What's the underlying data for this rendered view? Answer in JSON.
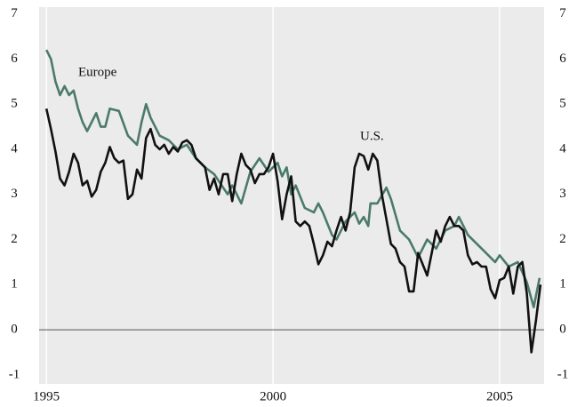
{
  "chart_data": {
    "type": "line",
    "annotations": [
      "Europe",
      "U.S."
    ],
    "series": [
      {
        "name": "U.S.",
        "color": "#111111",
        "x": [
          1995.0,
          1995.1,
          1995.2,
          1995.3,
          1995.4,
          1995.5,
          1995.6,
          1995.7,
          1995.8,
          1995.9,
          1996.0,
          1996.1,
          1996.2,
          1996.3,
          1996.4,
          1996.5,
          1996.6,
          1996.7,
          1996.8,
          1996.9,
          1997.0,
          1997.1,
          1997.2,
          1997.3,
          1997.4,
          1997.5,
          1997.6,
          1997.7,
          1997.8,
          1997.9,
          1998.0,
          1998.1,
          1998.2,
          1998.3,
          1998.4,
          1998.5,
          1998.6,
          1998.7,
          1998.8,
          1998.9,
          1999.0,
          1999.1,
          1999.2,
          1999.3,
          1999.4,
          1999.5,
          1999.6,
          1999.7,
          1999.8,
          1999.9,
          2000.0,
          2000.1,
          2000.2,
          2000.3,
          2000.4,
          2000.5,
          2000.6,
          2000.7,
          2000.8,
          2000.9,
          2001.0,
          2001.1,
          2001.2,
          2001.3,
          2001.4,
          2001.5,
          2001.6,
          2001.7,
          2001.8,
          2001.9,
          2002.0,
          2002.1,
          2002.2,
          2002.3,
          2002.4,
          2002.5,
          2002.6,
          2002.7,
          2002.8,
          2002.9,
          2003.0,
          2003.1,
          2003.2,
          2003.3,
          2003.4,
          2003.5,
          2003.6,
          2003.7,
          2003.8,
          2003.9,
          2004.0,
          2004.1,
          2004.2,
          2004.3,
          2004.4,
          2004.5,
          2004.6,
          2004.7,
          2004.8,
          2004.9,
          2005.0,
          2005.1,
          2005.2,
          2005.3,
          2005.4,
          2005.5,
          2005.6,
          2005.7,
          2005.8,
          2005.9
        ],
        "values": [
          4.9,
          4.45,
          3.95,
          3.35,
          3.2,
          3.5,
          3.9,
          3.7,
          3.2,
          3.3,
          2.95,
          3.1,
          3.5,
          3.7,
          4.05,
          3.8,
          3.7,
          3.75,
          2.9,
          3.0,
          3.55,
          3.35,
          4.25,
          4.45,
          4.1,
          4.0,
          4.1,
          3.9,
          4.05,
          3.95,
          4.15,
          4.2,
          4.1,
          3.8,
          3.7,
          3.6,
          3.1,
          3.35,
          3.0,
          3.45,
          3.45,
          2.85,
          3.45,
          3.9,
          3.65,
          3.55,
          3.25,
          3.45,
          3.45,
          3.6,
          3.9,
          3.3,
          2.45,
          3.0,
          3.4,
          2.4,
          2.3,
          2.4,
          2.3,
          1.9,
          1.45,
          1.65,
          1.95,
          1.85,
          2.2,
          2.5,
          2.2,
          2.6,
          3.6,
          3.9,
          3.85,
          3.55,
          3.9,
          3.75,
          3.0,
          2.45,
          1.9,
          1.8,
          1.5,
          1.4,
          0.85,
          0.85,
          1.7,
          1.45,
          1.2,
          1.7,
          2.2,
          1.95,
          2.3,
          2.5,
          2.3,
          2.3,
          2.2,
          1.65,
          1.45,
          1.5,
          1.4,
          1.4,
          0.9,
          0.7,
          1.1,
          1.15,
          1.4,
          0.8,
          1.4,
          1.5,
          0.8,
          -0.5,
          0.2,
          1.0
        ]
      },
      {
        "name": "Europe",
        "color": "#4b7a6b",
        "x": [
          1995.0,
          1995.1,
          1995.2,
          1995.3,
          1995.4,
          1995.5,
          1995.6,
          1995.7,
          1995.8,
          1995.9,
          1996.0,
          1996.1,
          1996.2,
          1996.3,
          1996.4,
          1996.6,
          1996.8,
          1997.0,
          1997.1,
          1997.2,
          1997.3,
          1997.5,
          1997.7,
          1997.9,
          1998.1,
          1998.3,
          1998.5,
          1998.7,
          1999.0,
          1999.1,
          1999.3,
          1999.5,
          1999.7,
          1999.9,
          2000.1,
          2000.2,
          2000.3,
          2000.4,
          2000.5,
          2000.7,
          2000.9,
          2001.0,
          2001.1,
          2001.3,
          2001.4,
          2001.6,
          2001.8,
          2001.9,
          2002.0,
          2002.1,
          2002.15,
          2002.3,
          2002.5,
          2002.6,
          2002.8,
          2003.0,
          2003.2,
          2003.4,
          2003.6,
          2003.8,
          2004.0,
          2004.1,
          2004.3,
          2004.5,
          2004.7,
          2004.9,
          2005.0,
          2005.2,
          2005.4,
          2005.6,
          2005.75,
          2005.88
        ],
        "values": [
          6.2,
          6.0,
          5.5,
          5.2,
          5.4,
          5.2,
          5.3,
          4.9,
          4.6,
          4.4,
          4.6,
          4.8,
          4.5,
          4.5,
          4.9,
          4.85,
          4.3,
          4.1,
          4.6,
          5.0,
          4.7,
          4.3,
          4.2,
          4.0,
          4.1,
          3.8,
          3.6,
          3.45,
          3.0,
          3.2,
          2.8,
          3.5,
          3.8,
          3.5,
          3.7,
          3.4,
          3.6,
          3.0,
          3.2,
          2.7,
          2.6,
          2.8,
          2.6,
          2.1,
          2.0,
          2.4,
          2.6,
          2.35,
          2.5,
          2.3,
          2.8,
          2.8,
          3.15,
          2.9,
          2.2,
          2.0,
          1.6,
          2.0,
          1.8,
          2.2,
          2.3,
          2.5,
          2.1,
          1.9,
          1.7,
          1.5,
          1.65,
          1.4,
          1.5,
          1.05,
          0.5,
          1.15
        ]
      }
    ],
    "xlim": [
      1994.84,
      2005.98
    ],
    "xticks": [
      1995,
      2000,
      2005
    ],
    "ylim": [
      -1.2,
      7.15
    ],
    "yticks": [
      -1,
      0,
      1,
      2,
      3,
      4,
      5,
      6,
      7
    ],
    "grid": true
  }
}
